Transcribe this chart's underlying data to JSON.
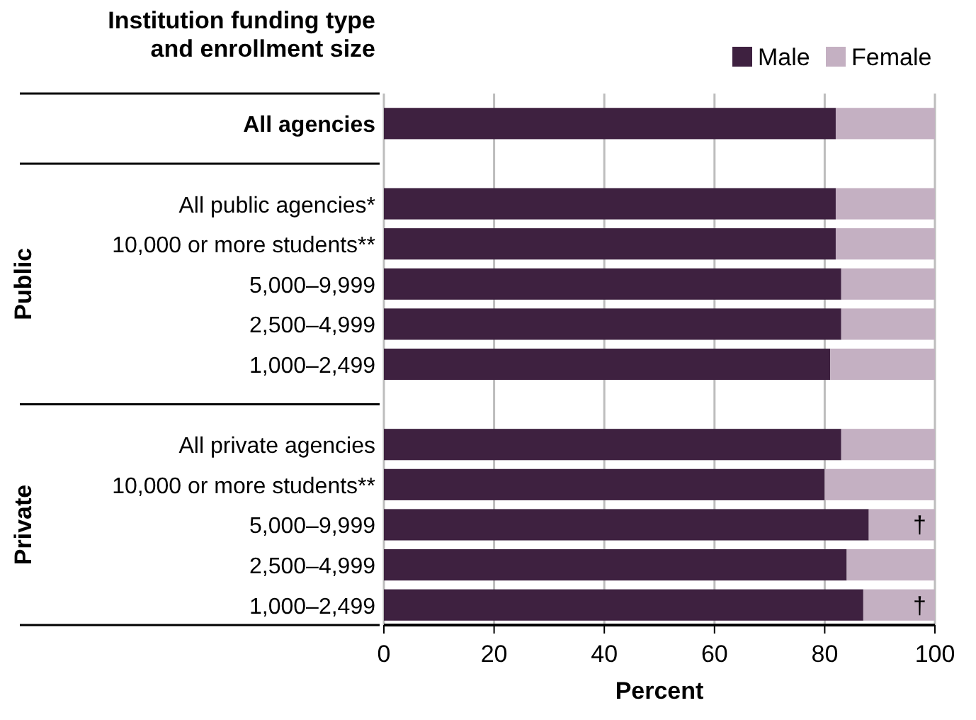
{
  "chart_data": {
    "type": "bar",
    "orientation": "horizontal",
    "stacked": true,
    "ylabel": "Institution funding type\nand enrollment size",
    "xlabel": "Percent",
    "categories": [
      "All agencies",
      null,
      "All public agencies*",
      "10,000 or more students**",
      "5,000–9,999",
      "2,500–4,999",
      "1,000–2,499",
      null,
      "All private agencies",
      "10,000 or more students**",
      "5,000–9,999",
      "2,500–4,999",
      "1,000–2,499"
    ],
    "series": [
      {
        "name": "Male",
        "color": "#3e2140",
        "values": [
          82,
          null,
          82,
          82,
          83,
          83,
          81,
          null,
          83,
          80,
          88,
          84,
          87
        ]
      },
      {
        "name": "Female",
        "color": "#c4b0c2",
        "values": [
          18,
          null,
          18,
          18,
          17,
          17,
          19,
          null,
          17,
          20,
          12,
          16,
          13
        ],
        "value_labels": [
          null,
          null,
          null,
          null,
          null,
          null,
          null,
          null,
          null,
          null,
          "†",
          null,
          "†"
        ]
      }
    ],
    "xlim": [
      0,
      100
    ],
    "xticks": [
      0,
      20,
      40,
      60,
      80,
      100
    ],
    "grid": "x",
    "legend": "top right",
    "annotations": [
      "Public",
      "Private"
    ]
  }
}
